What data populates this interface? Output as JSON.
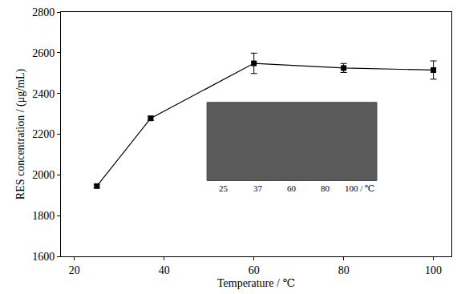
{
  "chart_data": {
    "type": "line",
    "x_label": "Temperature / ℃",
    "y_label": "RES concentration / (μg/mL)",
    "x": [
      25,
      37,
      60,
      80,
      100
    ],
    "values": [
      1945,
      2278,
      2548,
      2525,
      2515
    ],
    "errors": [
      8,
      10,
      50,
      22,
      45
    ],
    "color": "#000000",
    "marker": "square",
    "line_style": "solid",
    "xlim": [
      17,
      104
    ],
    "xticks": [
      20,
      40,
      60,
      80,
      100
    ],
    "ylim": [
      1600,
      2800
    ],
    "yticks": [
      1600,
      1800,
      2000,
      2200,
      2400,
      2600,
      2800
    ],
    "grid": false,
    "annotations": [
      "25",
      "37",
      "60",
      "80",
      "100 / ℃"
    ]
  }
}
